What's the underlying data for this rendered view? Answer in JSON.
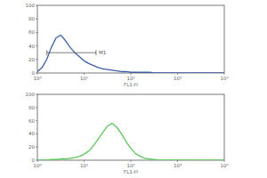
{
  "chart_data": [
    {
      "type": "line",
      "log": "x",
      "color": "#3a5fa8",
      "x": [
        1,
        1.259,
        1.585,
        1.995,
        2.512,
        3.162,
        3.981,
        5.012,
        6.31,
        7.943,
        10,
        12.59,
        15.85,
        19.95,
        25.12,
        31.62,
        39.81,
        50.12,
        63.1,
        79.43,
        100,
        125.9,
        158.5,
        199.5,
        251.2,
        316.2,
        398.1,
        501.2,
        631,
        794.3,
        1000,
        1259,
        1585,
        1995,
        2512,
        3162,
        3981,
        5012,
        6310,
        7943,
        10000
      ],
      "values": [
        2,
        8,
        20,
        38,
        52,
        56,
        48,
        38,
        30,
        24,
        18,
        14,
        11,
        8,
        6,
        5,
        4,
        3,
        2,
        2,
        1,
        1,
        1,
        1,
        1,
        0,
        0,
        0,
        0,
        0,
        0,
        0,
        0,
        0,
        0,
        0,
        0,
        0,
        0,
        0,
        0
      ],
      "xlim": [
        1,
        10000
      ],
      "xticks": [
        {
          "value": 1,
          "label": "10⁰"
        },
        {
          "value": 10,
          "label": "10¹"
        },
        {
          "value": 100,
          "label": "10²"
        },
        {
          "value": 1000,
          "label": "10³"
        },
        {
          "value": 10000,
          "label": "10⁴"
        }
      ],
      "ylim": [
        0,
        100
      ],
      "yticks": [
        0,
        20,
        40,
        60,
        80,
        100
      ],
      "x_label": "FL1-H",
      "annotations": [
        {
          "text": "M1",
          "x": [
            1.6,
            18
          ],
          "y": 30
        }
      ]
    },
    {
      "type": "line",
      "log": "x",
      "color": "#5cc85c",
      "x": [
        1,
        1.259,
        1.585,
        1.995,
        2.512,
        3.162,
        3.981,
        5.012,
        6.31,
        7.943,
        10,
        12.59,
        15.85,
        19.95,
        25.12,
        31.62,
        39.81,
        50.12,
        63.1,
        79.43,
        100,
        125.9,
        158.5,
        199.5,
        251.2,
        316.2,
        398.1,
        501.2,
        631,
        794.3,
        1000,
        1259,
        1585,
        1995,
        2512,
        3162,
        3981,
        5012,
        6310,
        7943,
        10000
      ],
      "values": [
        0,
        0,
        0,
        1,
        1,
        2,
        2,
        3,
        4,
        6,
        9,
        14,
        22,
        32,
        42,
        52,
        56,
        50,
        40,
        28,
        18,
        10,
        6,
        3,
        2,
        1,
        0,
        0,
        0,
        0,
        0,
        0,
        0,
        0,
        0,
        0,
        0,
        0,
        0,
        0,
        0
      ],
      "xlim": [
        1,
        10000
      ],
      "xticks": [
        {
          "value": 1,
          "label": "10⁰"
        },
        {
          "value": 10,
          "label": "10¹"
        },
        {
          "value": 100,
          "label": "10²"
        },
        {
          "value": 1000,
          "label": "10³"
        },
        {
          "value": 10000,
          "label": "10⁴"
        }
      ],
      "ylim": [
        0,
        100
      ],
      "yticks": [
        0,
        20,
        40,
        60,
        80,
        100
      ],
      "x_label": "FL1-H"
    }
  ]
}
